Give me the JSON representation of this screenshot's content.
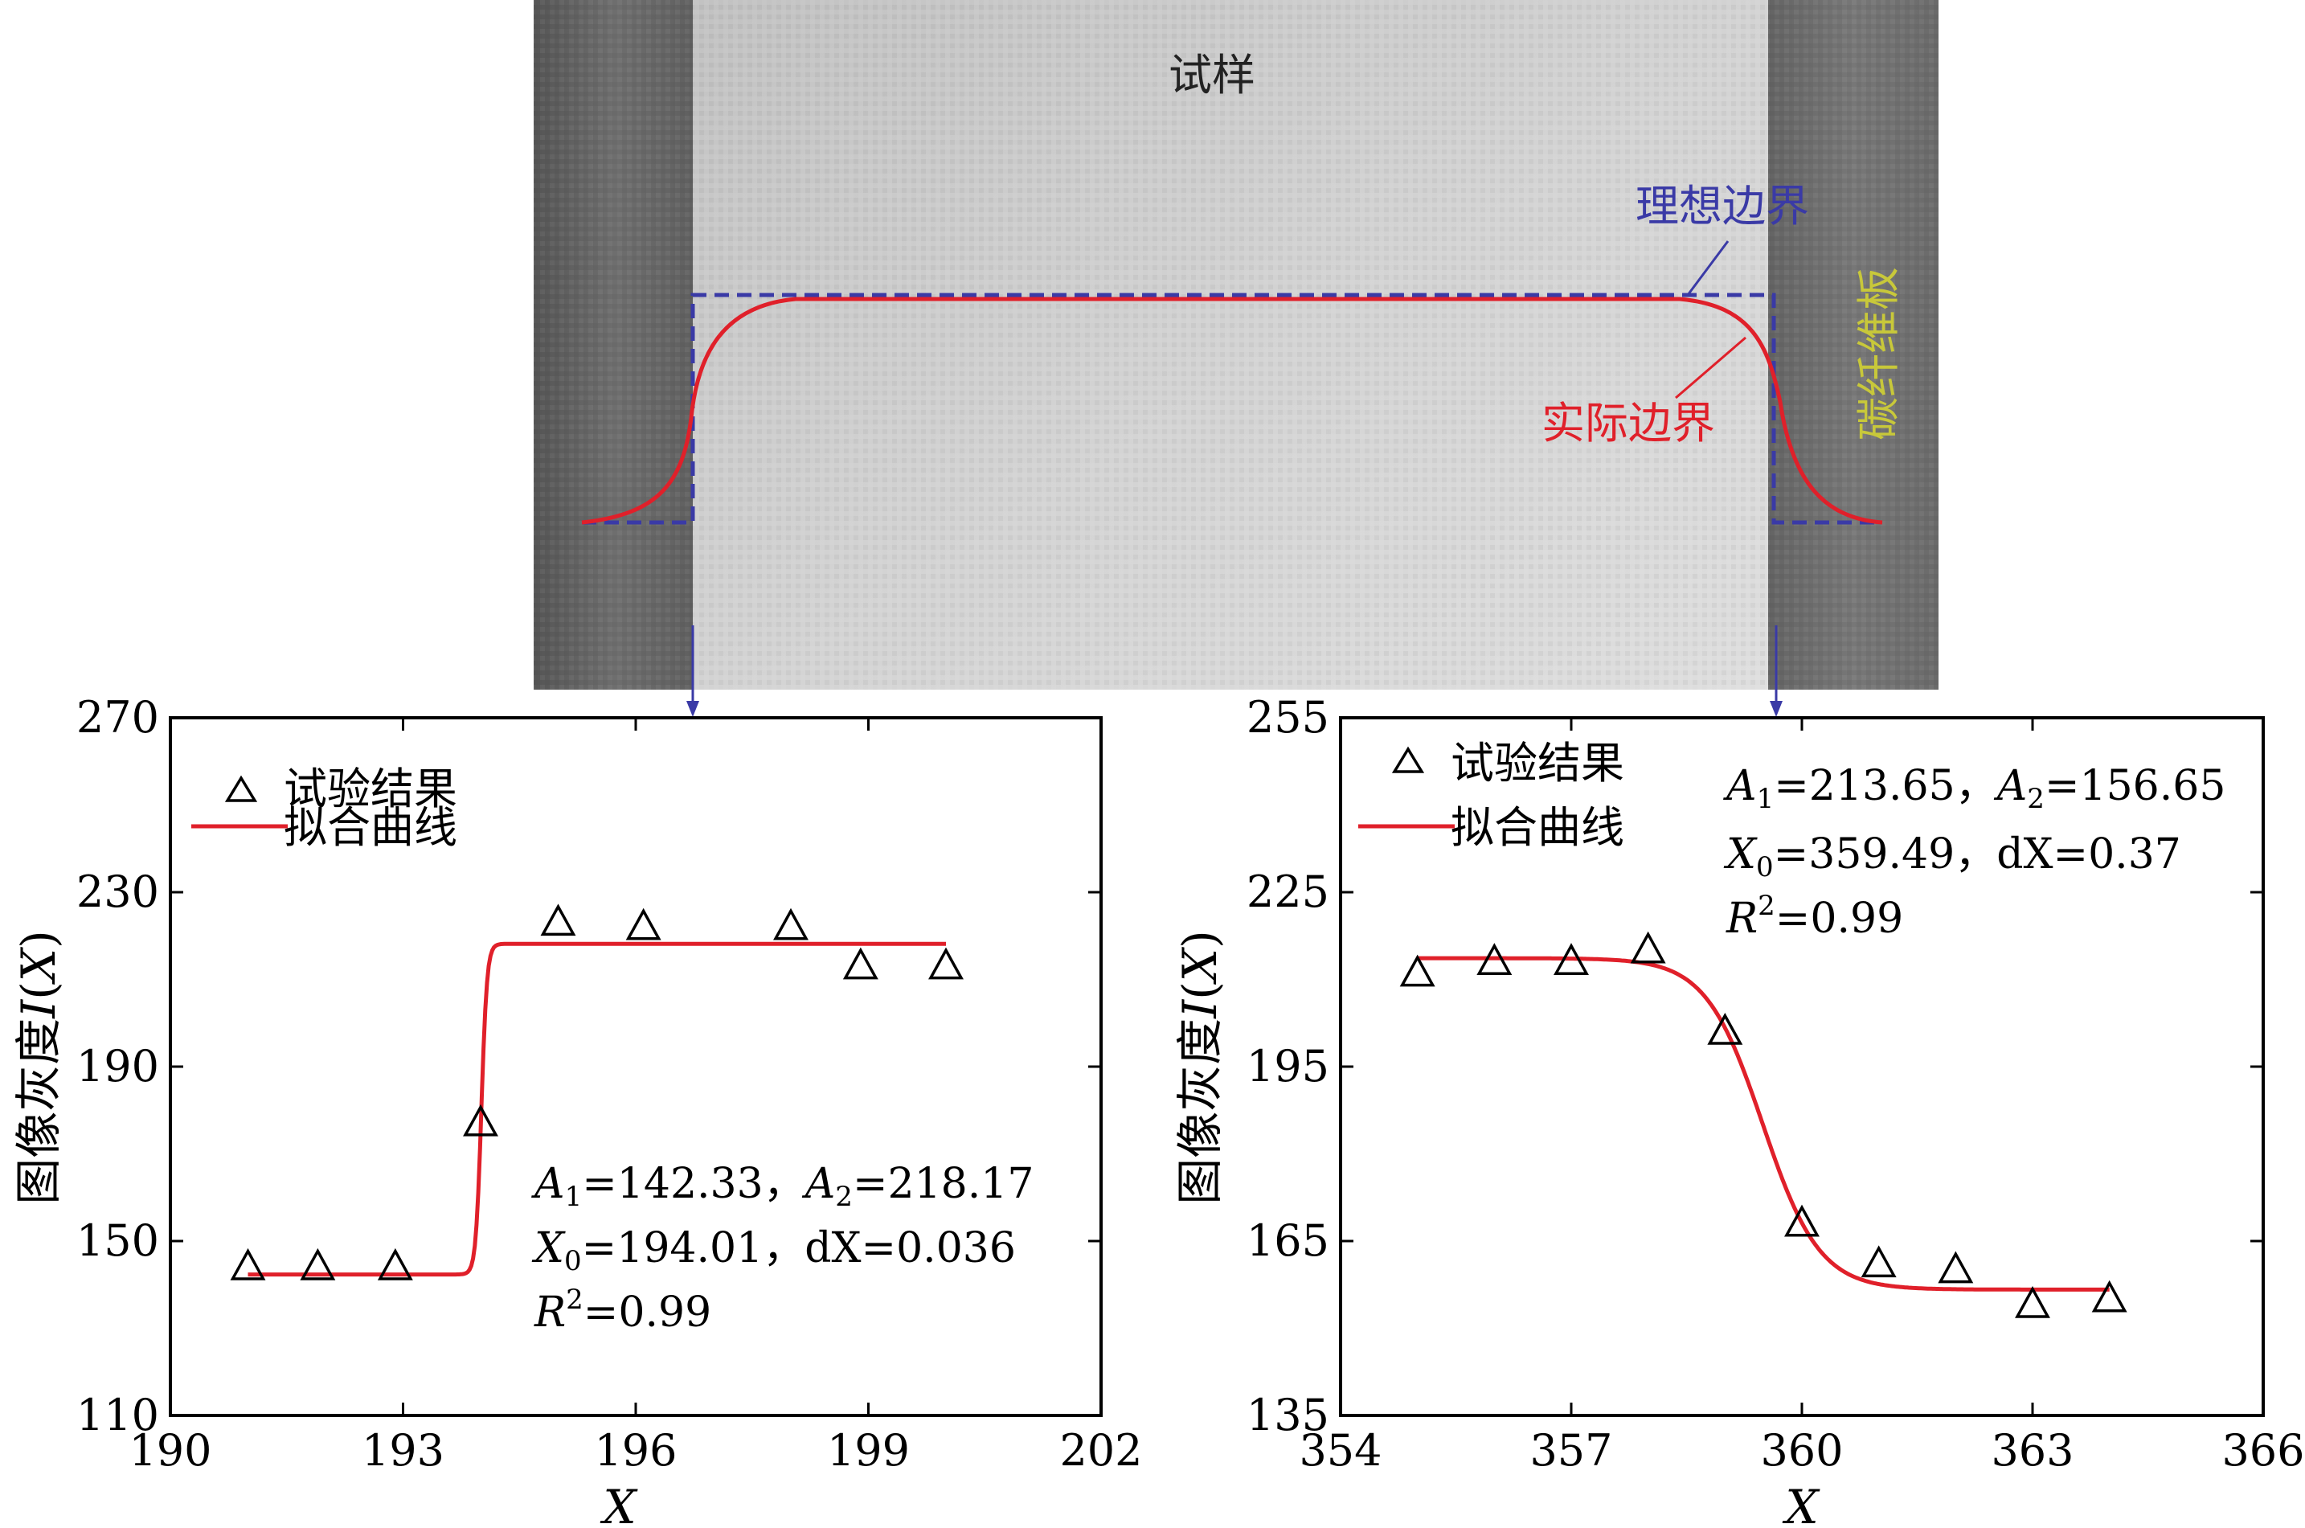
{
  "photo": {
    "label_specimen": "试样",
    "label_ideal": "理想边界",
    "label_actual": "实际边界",
    "label_plate": "碳纤维板",
    "colors": {
      "plate_dark": "#6a6a6a",
      "specimen_light": "#cfcfcf",
      "ideal_boundary": "#3a3aa6",
      "actual_boundary": "#e0202a",
      "plate_label": "#c8c83a"
    }
  },
  "legend": {
    "experiment": "试验结果",
    "fit": "拟合曲线"
  },
  "ylabel_prefix": "图像灰度",
  "ylabel_var": "I",
  "ylabel_paren_open": "(",
  "ylabel_paren_var": "X",
  "ylabel_paren_close": ")",
  "xlabel": "X",
  "chart_data": [
    {
      "type": "scatter",
      "xlim": [
        190,
        202
      ],
      "ylim": [
        110,
        270
      ],
      "xticks": [
        190,
        193,
        196,
        199,
        202
      ],
      "yticks": [
        110,
        150,
        190,
        230,
        270
      ],
      "series": [
        {
          "name": "试验结果",
          "x": [
            191.0,
            191.9,
            192.9,
            194.0,
            195.0,
            196.1,
            198.0,
            198.9,
            200.0
          ],
          "y": [
            144,
            144,
            144,
            177,
            223,
            222,
            222,
            213,
            213
          ]
        },
        {
          "name": "拟合曲线",
          "model": "boltzmann",
          "x_range": [
            191.0,
            200.0
          ],
          "A1": 142.33,
          "A2": 218.17,
          "X0": 194.01,
          "dX": 0.036
        }
      ],
      "annotation": [
        [
          "A",
          "1",
          "=142.33，",
          "A",
          "2",
          "=218.17"
        ],
        [
          "X",
          "0",
          "=194.01，",
          "dX",
          "",
          "=0.036"
        ],
        [
          "R",
          "2",
          "=0.99",
          "",
          "",
          ""
        ]
      ]
    },
    {
      "type": "scatter",
      "xlim": [
        354,
        366
      ],
      "ylim": [
        135,
        255
      ],
      "xticks": [
        354,
        357,
        360,
        363,
        366
      ],
      "yticks": [
        135,
        165,
        195,
        225,
        255
      ],
      "series": [
        {
          "name": "试验结果",
          "x": [
            355.0,
            356.0,
            357.0,
            358.0,
            359.0,
            360.0,
            361.0,
            362.0,
            363.0,
            364.0
          ],
          "y": [
            211,
            213,
            213,
            215,
            201,
            168,
            161,
            160,
            154,
            155
          ]
        },
        {
          "name": "拟合曲线",
          "model": "boltzmann",
          "x_range": [
            355.0,
            364.0
          ],
          "A1": 213.65,
          "A2": 156.65,
          "X0": 359.49,
          "dX": 0.37
        }
      ],
      "annotation": [
        [
          "A",
          "1",
          "=213.65，",
          "A",
          "2",
          "=156.65"
        ],
        [
          "X",
          "0",
          "=359.49，",
          "dX",
          "",
          "=0.37"
        ],
        [
          "R",
          "2",
          "=0.99",
          "",
          "",
          ""
        ]
      ]
    }
  ]
}
